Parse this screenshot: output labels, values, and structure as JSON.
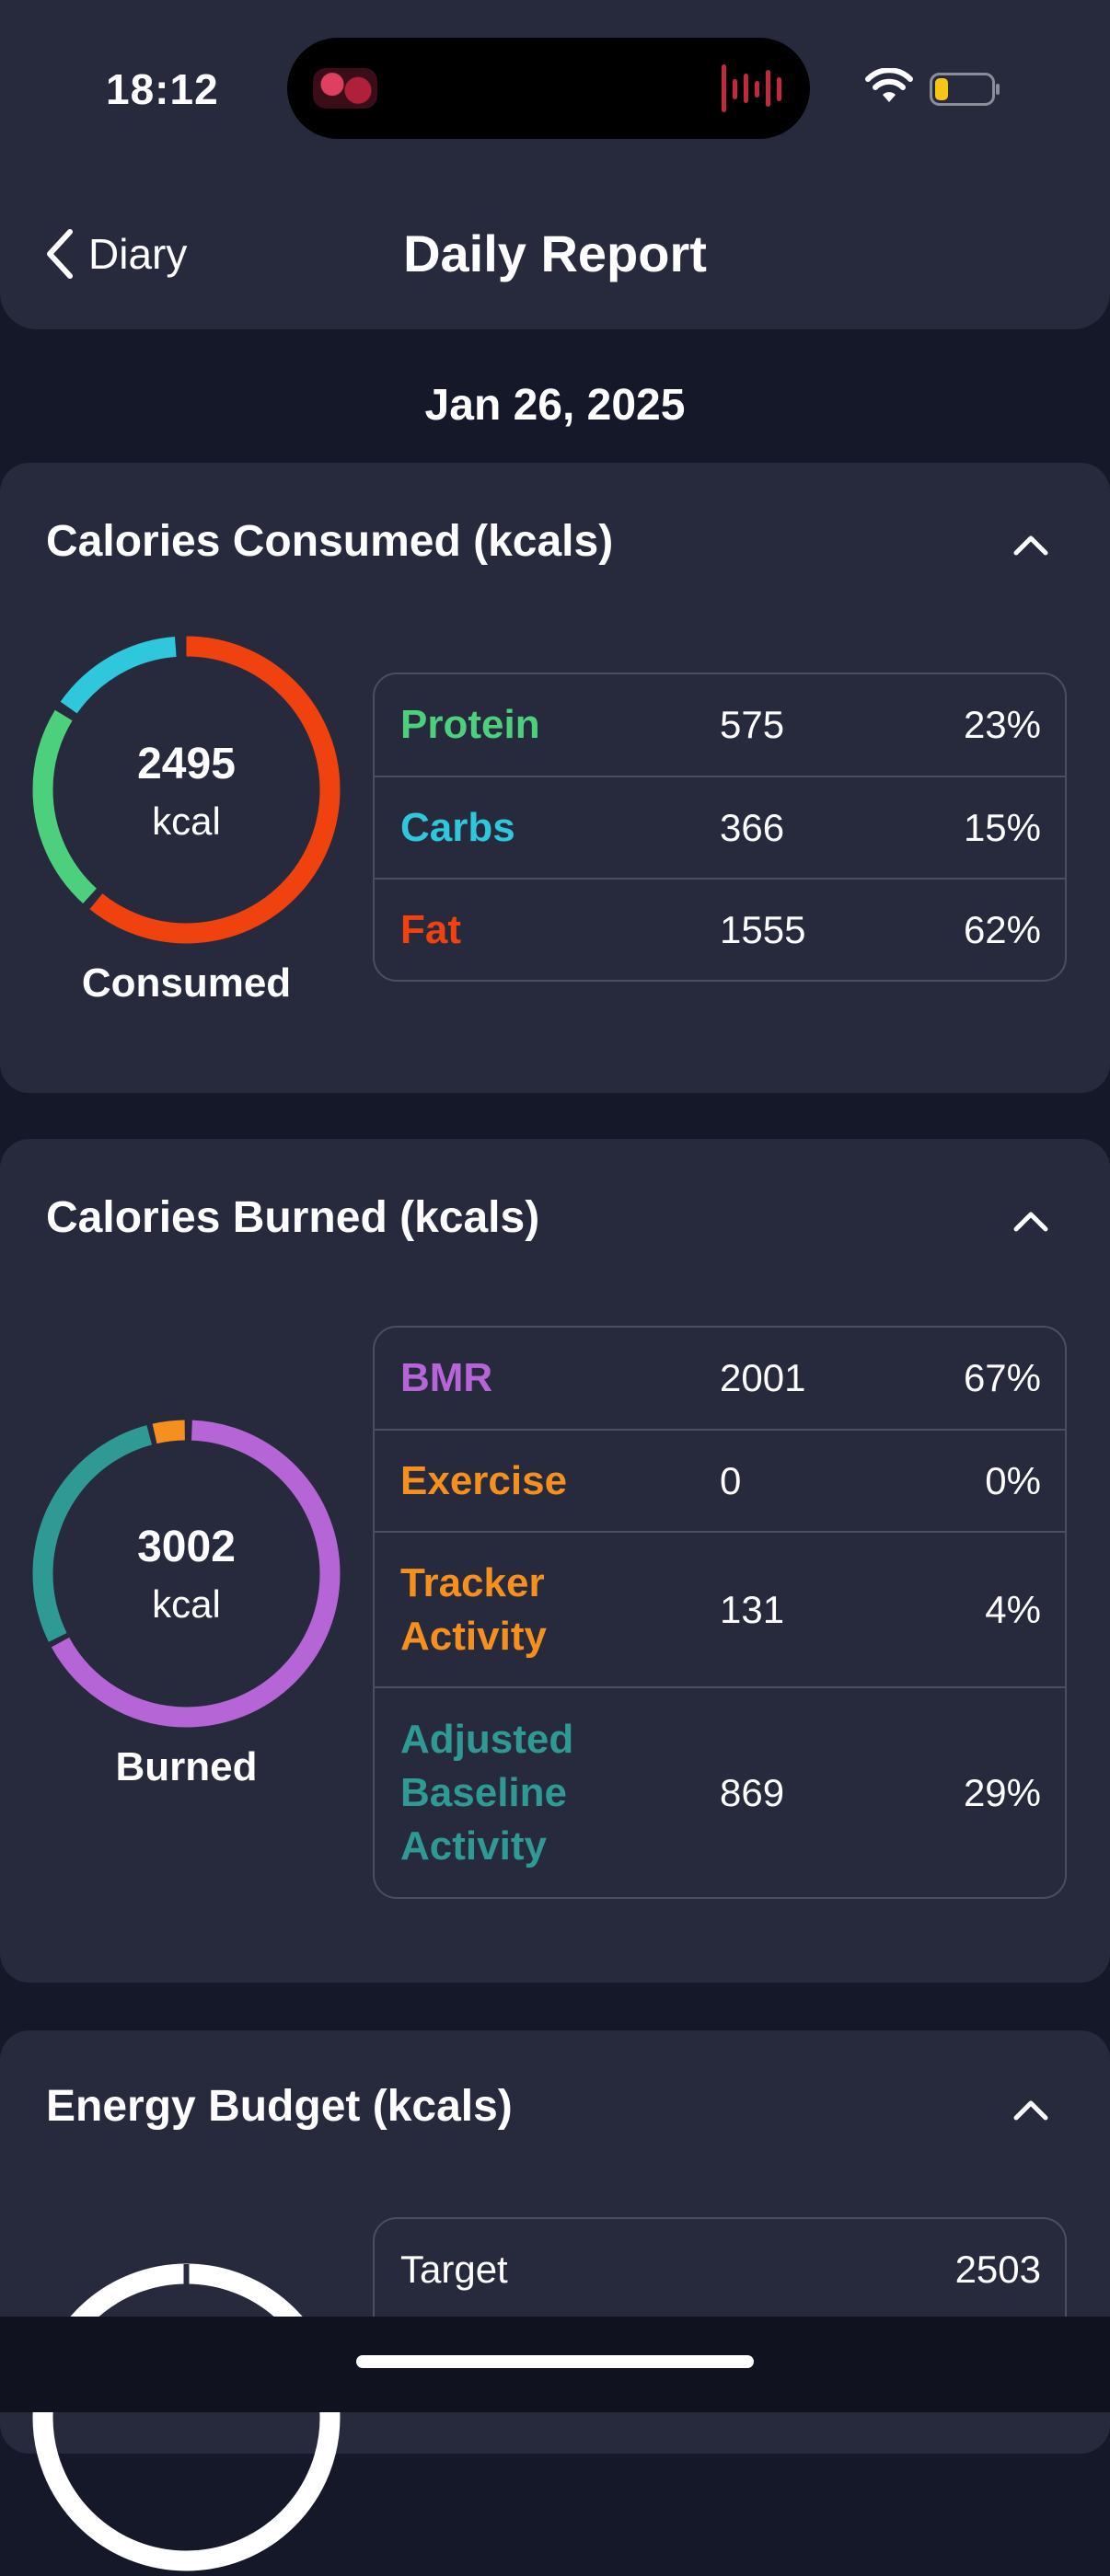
{
  "status_bar": {
    "time": "18:12",
    "battery_color": "#f5c518"
  },
  "nav": {
    "back_label": "Diary",
    "title": "Daily Report"
  },
  "date": "Jan 26, 2025",
  "consumed": {
    "title": "Calories Consumed (kcals)",
    "total": "2495",
    "unit": "kcal",
    "label": "Consumed",
    "rows": [
      {
        "name": "Protein",
        "value": "575",
        "pct": "23%",
        "color": "#4cd07d"
      },
      {
        "name": "Carbs",
        "value": "366",
        "pct": "15%",
        "color": "#2ec7dc"
      },
      {
        "name": "Fat",
        "value": "1555",
        "pct": "62%",
        "color": "#f0420f"
      }
    ]
  },
  "burned": {
    "title": "Calories Burned (kcals)",
    "total": "3002",
    "unit": "kcal",
    "label": "Burned",
    "rows": [
      {
        "name": "BMR",
        "value": "2001",
        "pct": "67%",
        "color": "#b565d6"
      },
      {
        "name": "Exercise",
        "value": "0",
        "pct": "0%",
        "color": "#f5901e"
      },
      {
        "name": "Tracker Activity",
        "value": "131",
        "pct": "4%",
        "color": "#f5901e"
      },
      {
        "name": "Adjusted Baseline Activity",
        "value": "869",
        "pct": "29%",
        "color": "#2f9a94"
      }
    ]
  },
  "budget": {
    "title": "Energy Budget (kcals)",
    "rows": [
      {
        "name": "Target",
        "value": "2503"
      }
    ]
  }
}
